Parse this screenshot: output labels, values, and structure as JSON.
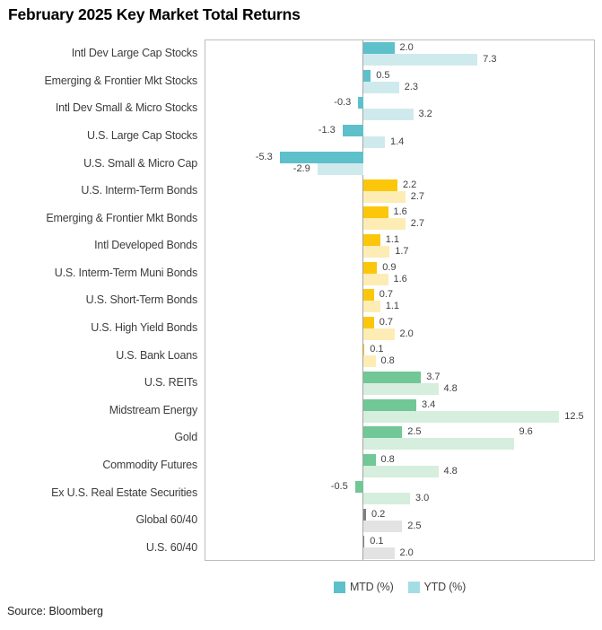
{
  "title": "February 2025 Key Market Total Returns",
  "source": "Source: Bloomberg",
  "legend": {
    "items": [
      {
        "label": "MTD (%)",
        "color": "#5ec0ca"
      },
      {
        "label": "YTD (%)",
        "color": "#a3dde4"
      }
    ]
  },
  "colors": {
    "teal": {
      "mtd": "#5ec0ca",
      "ytd": "#cfeaed"
    },
    "yellow": {
      "mtd": "#fcc60a",
      "ytd": "#fdedb5"
    },
    "green": {
      "mtd": "#71c795",
      "ytd": "#d6eedd"
    },
    "gray": {
      "mtd": "#7f7f7f",
      "ytd": "#e3e3e3"
    },
    "value_label": "#404040",
    "axis_line": "#a6a6a6",
    "plot_border": "#bdbdbd"
  },
  "chart_data": {
    "type": "bar",
    "orientation": "horizontal",
    "title": "February 2025 Key Market Total Returns",
    "xlabel": "",
    "ylabel": "",
    "xlim": [
      -10,
      14.9
    ],
    "grid": false,
    "legend_position": "bottom-center",
    "categories": [
      "Intl Dev Large Cap Stocks",
      "Emerging & Frontier Mkt Stocks",
      "Intl Dev Small & Micro Stocks",
      "U.S. Large Cap Stocks",
      "U.S. Small & Micro Cap",
      "U.S. Interm-Term Bonds",
      "Emerging & Frontier Mkt Bonds",
      "Intl Developed Bonds",
      "U.S. Interm-Term Muni Bonds",
      "U.S. Short-Term Bonds",
      "U.S. High Yield Bonds",
      "U.S. Bank Loans",
      "U.S. REITs",
      "Midstream Energy",
      "Gold",
      "Commodity Futures",
      "Ex U.S. Real Estate Securities",
      "Global 60/40",
      "U.S. 60/40"
    ],
    "category_groups": [
      "teal",
      "teal",
      "teal",
      "teal",
      "teal",
      "yellow",
      "yellow",
      "yellow",
      "yellow",
      "yellow",
      "yellow",
      "yellow",
      "green",
      "green",
      "green",
      "green",
      "green",
      "gray",
      "gray"
    ],
    "series": [
      {
        "name": "MTD (%)",
        "values": [
          2.0,
          0.5,
          -0.3,
          -1.3,
          -5.3,
          2.2,
          1.6,
          1.1,
          0.9,
          0.7,
          0.7,
          0.1,
          3.7,
          3.4,
          2.5,
          0.8,
          -0.5,
          0.2,
          0.1
        ]
      },
      {
        "name": "YTD (%)",
        "values": [
          7.3,
          2.3,
          3.2,
          1.4,
          -2.9,
          2.7,
          2.7,
          1.7,
          1.6,
          1.1,
          2.0,
          0.8,
          4.8,
          12.5,
          9.6,
          4.8,
          3.0,
          2.5,
          2.0
        ]
      }
    ]
  }
}
